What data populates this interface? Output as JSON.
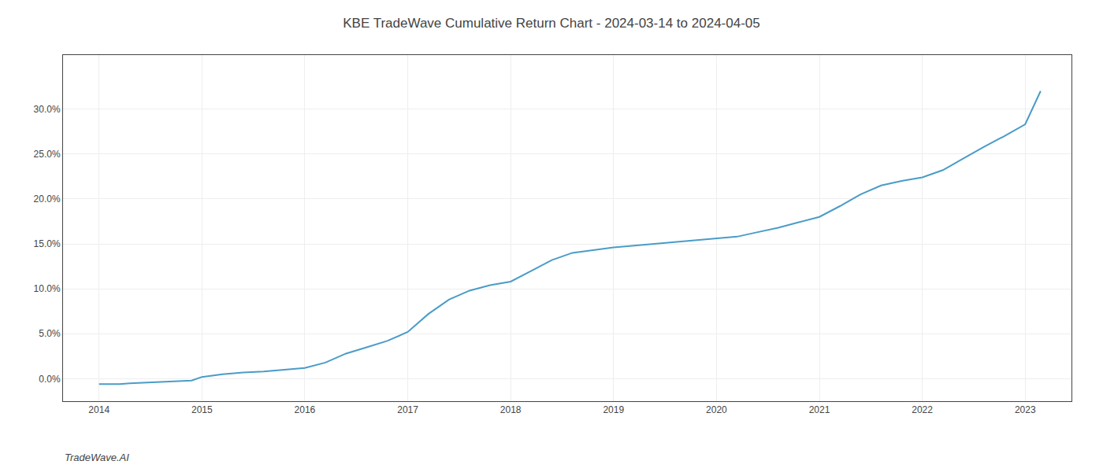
{
  "chart_data": {
    "type": "line",
    "title": "KBE TradeWave Cumulative Return Chart - 2024-03-14 to 2024-04-05",
    "annotations": [
      {
        "text": "TradeWave.AI"
      }
    ],
    "x": [
      2014.0,
      2014.1,
      2014.2,
      2014.3,
      2014.5,
      2014.7,
      2014.9,
      2015.0,
      2015.2,
      2015.4,
      2015.6,
      2015.8,
      2016.0,
      2016.2,
      2016.4,
      2016.6,
      2016.8,
      2017.0,
      2017.2,
      2017.4,
      2017.6,
      2017.8,
      2018.0,
      2018.2,
      2018.4,
      2018.6,
      2018.8,
      2019.0,
      2019.2,
      2019.4,
      2019.6,
      2019.8,
      2020.0,
      2020.2,
      2020.4,
      2020.6,
      2020.8,
      2021.0,
      2021.2,
      2021.4,
      2021.6,
      2021.8,
      2022.0,
      2022.2,
      2022.4,
      2022.6,
      2022.8,
      2023.0,
      2023.15
    ],
    "values": [
      -0.006,
      -0.006,
      -0.006,
      -0.005,
      -0.004,
      -0.003,
      -0.002,
      0.002,
      0.005,
      0.007,
      0.008,
      0.01,
      0.012,
      0.018,
      0.028,
      0.035,
      0.042,
      0.052,
      0.072,
      0.088,
      0.098,
      0.104,
      0.108,
      0.12,
      0.132,
      0.14,
      0.143,
      0.146,
      0.148,
      0.15,
      0.152,
      0.154,
      0.156,
      0.158,
      0.163,
      0.168,
      0.174,
      0.18,
      0.192,
      0.205,
      0.215,
      0.22,
      0.224,
      0.232,
      0.245,
      0.258,
      0.27,
      0.283,
      0.32
    ],
    "color": "#4a9cc8",
    "xlim": [
      2013.65,
      2023.45
    ],
    "ylim": [
      -0.025,
      0.36
    ],
    "xticks": [
      2014,
      2015,
      2016,
      2017,
      2018,
      2019,
      2020,
      2021,
      2022,
      2023
    ],
    "yticks": [
      {
        "value": 0.0,
        "label": "0.0%"
      },
      {
        "value": 0.05,
        "label": "5.0%"
      },
      {
        "value": 0.1,
        "label": "10.0%"
      },
      {
        "value": 0.15,
        "label": "15.0%"
      },
      {
        "value": 0.2,
        "label": "20.0%"
      },
      {
        "value": 0.25,
        "label": "25.0%"
      },
      {
        "value": 0.3,
        "label": "30.0%"
      }
    ],
    "grid": true
  }
}
